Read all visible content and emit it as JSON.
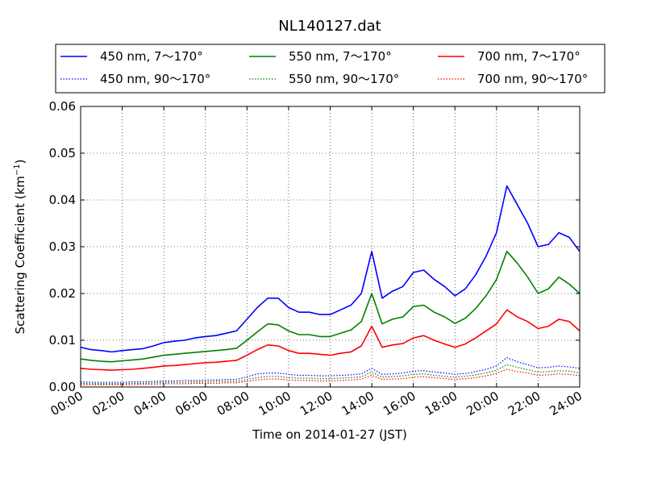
{
  "chart_data": {
    "type": "line",
    "title": "NL140127.dat",
    "xlabel": "Time on 2014-01-27 (JST)",
    "ylabel": "Scattering Coefficient (km",
    "ylabel_sup": "−1",
    "ylabel_close": ")",
    "xlim": [
      0,
      24
    ],
    "ylim": [
      0,
      0.06
    ],
    "x_ticks": [
      0,
      2,
      4,
      6,
      8,
      10,
      12,
      14,
      16,
      18,
      20,
      22,
      24
    ],
    "x_tick_labels": [
      "00:00",
      "02:00",
      "04:00",
      "06:00",
      "08:00",
      "10:00",
      "12:00",
      "14:00",
      "16:00",
      "18:00",
      "20:00",
      "22:00",
      "24:00"
    ],
    "y_ticks": [
      0,
      0.01,
      0.02,
      0.03,
      0.04,
      0.05,
      0.06
    ],
    "y_tick_labels": [
      "0.00",
      "0.01",
      "0.02",
      "0.03",
      "0.04",
      "0.05",
      "0.06"
    ],
    "grid": true,
    "legend_position": "top, above plot",
    "x": [
      0,
      0.5,
      1,
      1.5,
      2,
      2.5,
      3,
      3.5,
      4,
      4.5,
      5,
      5.5,
      6,
      6.5,
      7,
      7.5,
      8,
      8.5,
      9,
      9.5,
      10,
      10.5,
      11,
      11.5,
      12,
      12.5,
      13,
      13.5,
      14,
      14.5,
      15,
      15.5,
      16,
      16.5,
      17,
      17.5,
      18,
      18.5,
      19,
      19.5,
      20,
      20.5,
      21,
      21.5,
      22,
      22.5,
      23,
      23.5,
      24
    ],
    "series": [
      {
        "name": "450 nm, 7～170°",
        "color": "#0000ff",
        "style": "solid",
        "values": [
          0.0085,
          0.008,
          0.0078,
          0.0075,
          0.0078,
          0.008,
          0.0082,
          0.0088,
          0.0095,
          0.0098,
          0.01,
          0.0105,
          0.0108,
          0.011,
          0.0115,
          0.012,
          0.0145,
          0.017,
          0.019,
          0.019,
          0.017,
          0.016,
          0.016,
          0.0155,
          0.0155,
          0.0165,
          0.0175,
          0.02,
          0.029,
          0.019,
          0.0205,
          0.0215,
          0.0245,
          0.025,
          0.023,
          0.0215,
          0.0195,
          0.021,
          0.024,
          0.028,
          0.033,
          0.043,
          0.039,
          0.035,
          0.03,
          0.0305,
          0.033,
          0.032,
          0.029
        ]
      },
      {
        "name": "450 nm, 90～170°",
        "color": "#0000ff",
        "style": "dotted",
        "values": [
          0.0011,
          0.001,
          0.001,
          0.001,
          0.001,
          0.0011,
          0.0011,
          0.0012,
          0.0013,
          0.0013,
          0.0014,
          0.0014,
          0.0015,
          0.0015,
          0.0016,
          0.0016,
          0.0022,
          0.0028,
          0.003,
          0.003,
          0.0027,
          0.0025,
          0.0025,
          0.0024,
          0.0024,
          0.0025,
          0.0026,
          0.0028,
          0.004,
          0.0027,
          0.0028,
          0.003,
          0.0034,
          0.0035,
          0.0032,
          0.003,
          0.0027,
          0.0029,
          0.0033,
          0.0038,
          0.0045,
          0.0063,
          0.0054,
          0.0048,
          0.0041,
          0.0042,
          0.0045,
          0.0043,
          0.004
        ]
      },
      {
        "name": "550 nm, 7～170°",
        "color": "#008000",
        "style": "solid",
        "values": [
          0.006,
          0.0057,
          0.0055,
          0.0054,
          0.0056,
          0.0058,
          0.006,
          0.0064,
          0.0068,
          0.007,
          0.0072,
          0.0074,
          0.0076,
          0.0078,
          0.008,
          0.0083,
          0.01,
          0.0118,
          0.0135,
          0.0133,
          0.012,
          0.0112,
          0.0112,
          0.0108,
          0.0108,
          0.0115,
          0.0122,
          0.014,
          0.02,
          0.0135,
          0.0145,
          0.015,
          0.0172,
          0.0175,
          0.016,
          0.015,
          0.0136,
          0.0147,
          0.0168,
          0.0195,
          0.023,
          0.029,
          0.0265,
          0.0235,
          0.02,
          0.021,
          0.0235,
          0.022,
          0.02
        ]
      },
      {
        "name": "550 nm, 90～170°",
        "color": "#008000",
        "style": "dotted",
        "values": [
          0.0008,
          0.0007,
          0.0007,
          0.0007,
          0.0007,
          0.0008,
          0.0008,
          0.0009,
          0.001,
          0.001,
          0.001,
          0.0011,
          0.0011,
          0.0012,
          0.0012,
          0.0012,
          0.0016,
          0.002,
          0.0023,
          0.0023,
          0.002,
          0.0019,
          0.0019,
          0.0018,
          0.0018,
          0.0019,
          0.002,
          0.0022,
          0.0032,
          0.0021,
          0.0022,
          0.0024,
          0.0027,
          0.0028,
          0.0025,
          0.0023,
          0.0021,
          0.0023,
          0.0026,
          0.003,
          0.0036,
          0.0048,
          0.0042,
          0.0037,
          0.0032,
          0.0033,
          0.0035,
          0.0034,
          0.003
        ]
      },
      {
        "name": "700 nm, 7～170°",
        "color": "#ff0000",
        "style": "solid",
        "values": [
          0.004,
          0.0038,
          0.0037,
          0.0036,
          0.0037,
          0.0038,
          0.004,
          0.0042,
          0.0045,
          0.0046,
          0.0048,
          0.005,
          0.0052,
          0.0053,
          0.0055,
          0.0057,
          0.0068,
          0.008,
          0.009,
          0.0088,
          0.0078,
          0.0072,
          0.0072,
          0.007,
          0.0068,
          0.0072,
          0.0075,
          0.0088,
          0.013,
          0.0085,
          0.009,
          0.0093,
          0.0105,
          0.011,
          0.01,
          0.0092,
          0.0085,
          0.0092,
          0.0105,
          0.012,
          0.0135,
          0.0165,
          0.015,
          0.014,
          0.0125,
          0.013,
          0.0145,
          0.014,
          0.012
        ]
      },
      {
        "name": "700 nm, 90～170°",
        "color": "#ff0000",
        "style": "dotted",
        "values": [
          0.0005,
          0.0005,
          0.0005,
          0.0005,
          0.0005,
          0.0005,
          0.0006,
          0.0006,
          0.0007,
          0.0007,
          0.0007,
          0.0008,
          0.0008,
          0.0008,
          0.0009,
          0.0009,
          0.0012,
          0.0015,
          0.0017,
          0.0017,
          0.0015,
          0.0014,
          0.0014,
          0.0013,
          0.0013,
          0.0014,
          0.0015,
          0.0017,
          0.0025,
          0.0016,
          0.0017,
          0.0018,
          0.0021,
          0.0022,
          0.002,
          0.0018,
          0.0016,
          0.0018,
          0.002,
          0.0024,
          0.0029,
          0.0038,
          0.0033,
          0.003,
          0.0025,
          0.0026,
          0.0028,
          0.0027,
          0.0024
        ]
      }
    ]
  }
}
